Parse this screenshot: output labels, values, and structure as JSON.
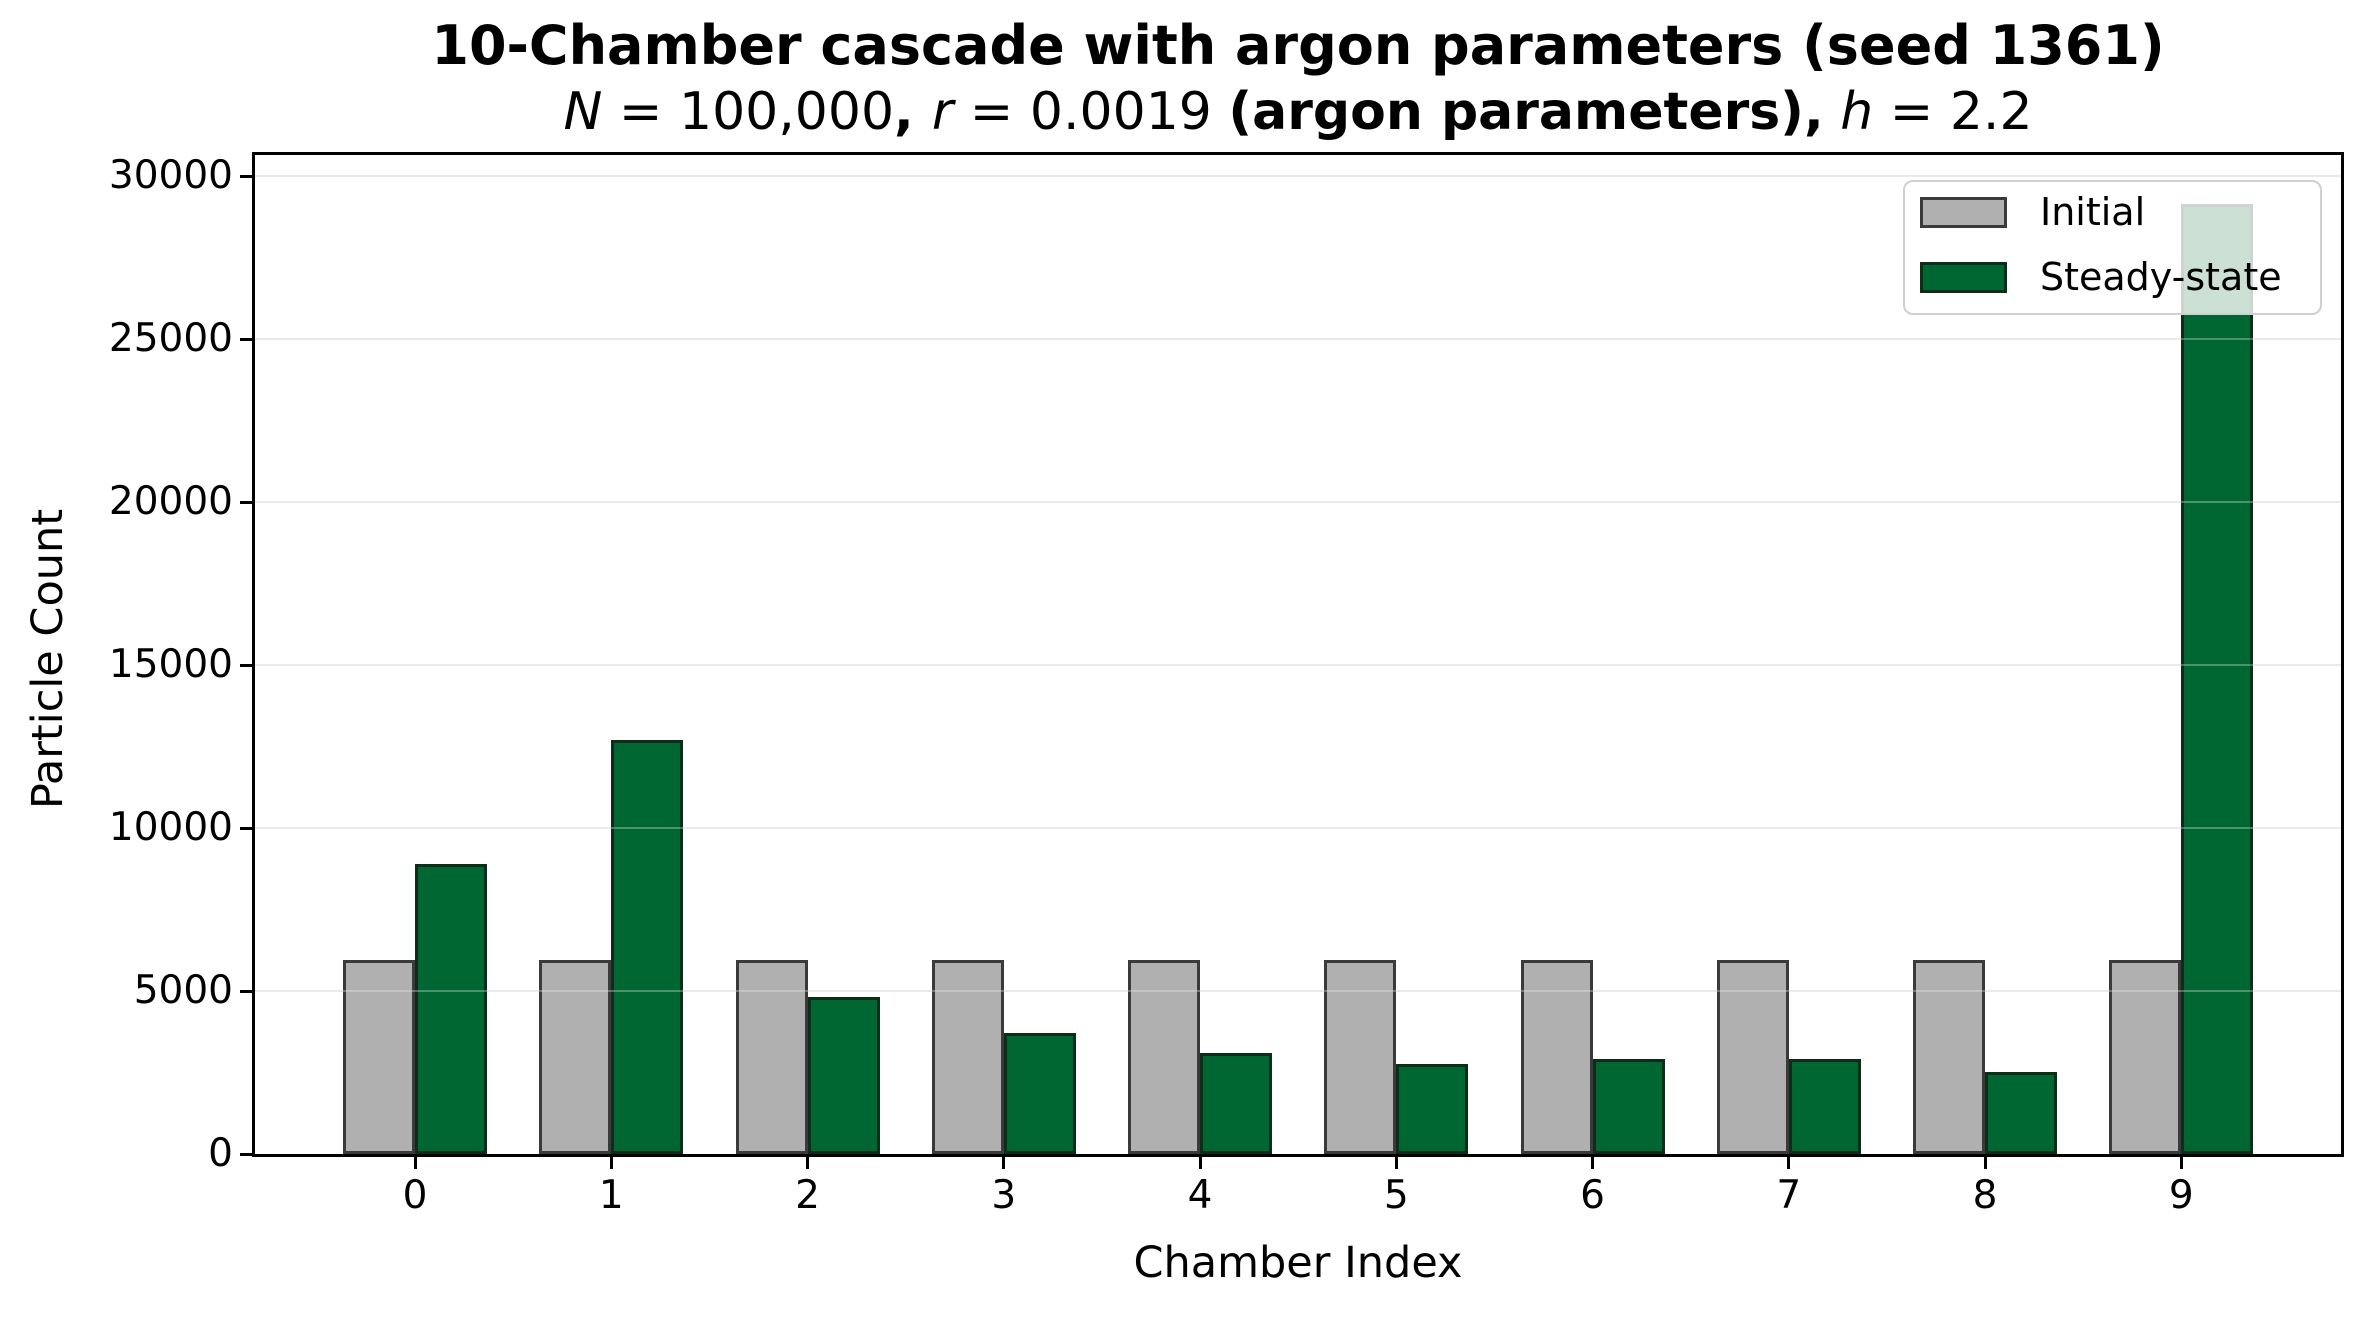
{
  "title": "10-Chamber cascade with argon parameters (seed 1361)",
  "subtitle_parts": [
    {
      "t": "N",
      "s": "it"
    },
    {
      "t": " = 100,000",
      "s": ""
    },
    {
      "t": ", ",
      "s": "bd"
    },
    {
      "t": "r",
      "s": "it"
    },
    {
      "t": " = 0.0019 ",
      "s": ""
    },
    {
      "t": "(argon parameters),",
      "s": "bd"
    },
    {
      "t": " ",
      "s": ""
    },
    {
      "t": "h",
      "s": "it"
    },
    {
      "t": " = 2.2",
      "s": ""
    }
  ],
  "chart_data": {
    "type": "bar",
    "title": "10-Chamber cascade with argon parameters (seed 1361)",
    "subtitle": "N = 100,000, r = 0.0019 (argon parameters), h = 2.2",
    "xlabel": "Chamber Index",
    "ylabel": "Particle Count",
    "categories": [
      "0",
      "1",
      "2",
      "3",
      "4",
      "5",
      "6",
      "7",
      "8",
      "9"
    ],
    "series": [
      {
        "name": "Initial",
        "color": "#b0b0b0",
        "edgecolor": "#3a3a3a",
        "values": [
          5950,
          5950,
          5950,
          5950,
          5950,
          5950,
          5950,
          5950,
          5950,
          5950
        ]
      },
      {
        "name": "Steady-state",
        "color": "#006632",
        "edgecolor": "#0a2e18",
        "values": [
          8900,
          12700,
          4830,
          3700,
          3090,
          2750,
          2910,
          2900,
          2520,
          29150
        ]
      }
    ],
    "ylim": [
      0,
      30650
    ],
    "yticks": [
      0,
      5000,
      10000,
      15000,
      20000,
      25000,
      30000
    ],
    "ytick_labels": [
      "0",
      "5000",
      "10000",
      "15000",
      "20000",
      "25000",
      "30000"
    ],
    "grid": "horizontal",
    "gridline_color": "#e8e8e8",
    "legend_position": "upper right",
    "legend": {
      "items": [
        {
          "label": "Initial",
          "color": "#b0b0b0",
          "edgecolor": "#3a3a3a"
        },
        {
          "label": "Steady-state",
          "color": "#006632",
          "edgecolor": "#0a2e18"
        }
      ]
    }
  }
}
